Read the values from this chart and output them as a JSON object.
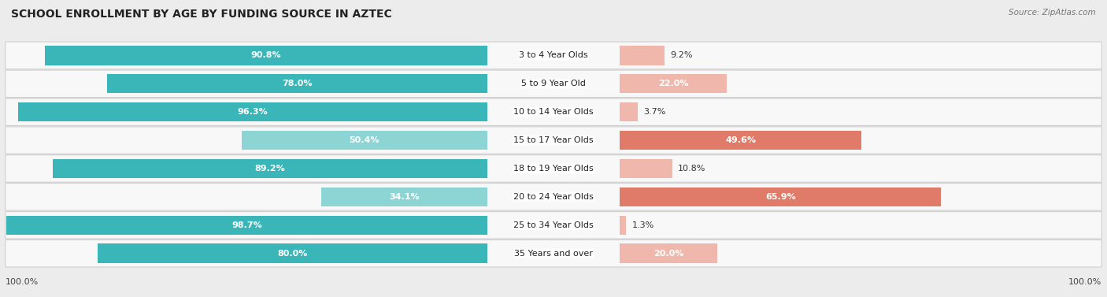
{
  "title": "SCHOOL ENROLLMENT BY AGE BY FUNDING SOURCE IN AZTEC",
  "source": "Source: ZipAtlas.com",
  "categories": [
    "3 to 4 Year Olds",
    "5 to 9 Year Old",
    "10 to 14 Year Olds",
    "15 to 17 Year Olds",
    "18 to 19 Year Olds",
    "20 to 24 Year Olds",
    "25 to 34 Year Olds",
    "35 Years and over"
  ],
  "public_values": [
    90.8,
    78.0,
    96.3,
    50.4,
    89.2,
    34.1,
    98.7,
    80.0
  ],
  "private_values": [
    9.2,
    22.0,
    3.7,
    49.6,
    10.8,
    65.9,
    1.3,
    20.0
  ],
  "public_color_full": "#3ab5b8",
  "public_color_light": "#8dd4d5",
  "private_color_full": "#e07b6a",
  "private_color_light": "#f0b8ad",
  "bg_color": "#ececec",
  "row_bg": "#f8f8f8",
  "row_border": "#d0d0d0",
  "title_fontsize": 10,
  "label_fontsize": 8,
  "value_fontsize": 8,
  "legend_fontsize": 8.5,
  "left_label": "100.0%",
  "right_label": "100.0%",
  "pub_threshold": 60,
  "priv_threshold": 40
}
